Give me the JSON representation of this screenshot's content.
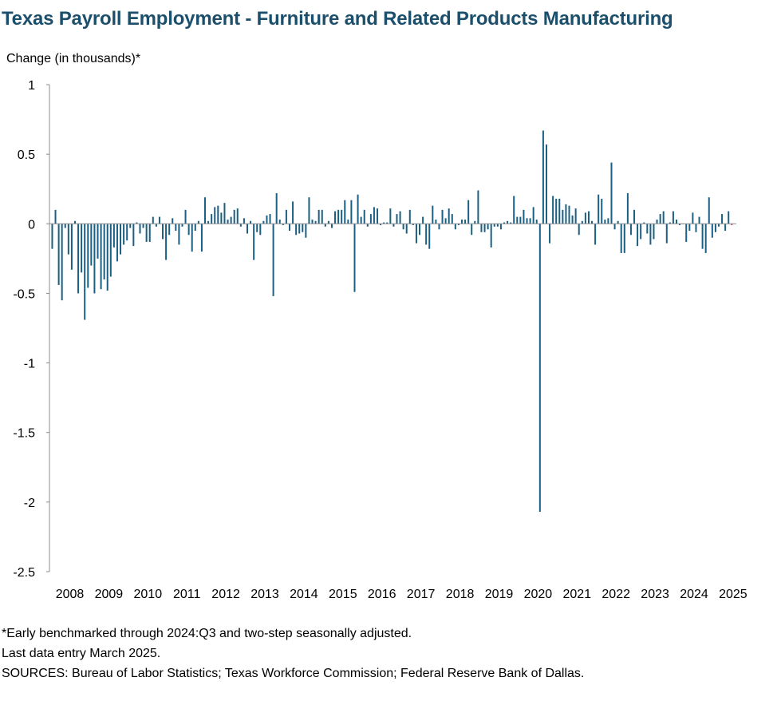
{
  "chart_data": {
    "type": "bar",
    "title": "Texas Payroll Employment - Furniture and Related Products Manufacturing",
    "ylabel": "Change (in thousands)*",
    "xlabel": "",
    "ylim": [
      -2.5,
      1
    ],
    "yticks": [
      "1",
      "0.5",
      "0",
      "-0.5",
      "-1",
      "-1.5",
      "-2",
      "-2.5"
    ],
    "ytick_values": [
      1,
      0.5,
      0,
      -0.5,
      -1,
      -1.5,
      -2,
      -2.5
    ],
    "xticks": [
      "2008",
      "2009",
      "2010",
      "2011",
      "2012",
      "2013",
      "2014",
      "2015",
      "2016",
      "2017",
      "2018",
      "2019",
      "2020",
      "2021",
      "2022",
      "2023",
      "2024",
      "2025"
    ],
    "start": "2008-01",
    "end": "2025-03",
    "grid": false,
    "bar_color": "#1b5f82",
    "negative_last_color": "#c0504d",
    "values": [
      -0.18,
      0.1,
      -0.44,
      -0.55,
      -0.03,
      -0.22,
      -0.33,
      0.02,
      -0.5,
      -0.35,
      -0.69,
      -0.46,
      -0.3,
      -0.5,
      -0.25,
      -0.47,
      -0.4,
      -0.48,
      -0.38,
      -0.17,
      -0.27,
      -0.22,
      -0.15,
      -0.12,
      -0.03,
      -0.16,
      0.01,
      -0.07,
      -0.03,
      -0.13,
      -0.13,
      0.05,
      -0.02,
      0.05,
      -0.11,
      -0.26,
      -0.08,
      0.04,
      -0.05,
      -0.15,
      -0.02,
      0.1,
      -0.08,
      -0.2,
      -0.05,
      0.02,
      -0.2,
      0.19,
      0.02,
      0.07,
      0.12,
      0.13,
      0.08,
      0.15,
      0.03,
      0.05,
      0.1,
      0.11,
      -0.02,
      0.04,
      -0.07,
      0.02,
      -0.26,
      -0.06,
      -0.08,
      0.02,
      0.06,
      0.07,
      -0.52,
      0.22,
      0.03,
      -0.01,
      0.1,
      -0.05,
      0.16,
      -0.08,
      -0.07,
      -0.06,
      -0.1,
      0.19,
      0.03,
      0.02,
      0.1,
      0.1,
      -0.02,
      0.02,
      -0.03,
      0.09,
      0.1,
      0.1,
      0.17,
      0.03,
      0.17,
      -0.49,
      0.21,
      0.05,
      0.1,
      -0.02,
      0.07,
      0.12,
      0.11,
      -0.01,
      0.01,
      0.01,
      0.11,
      -0.02,
      0.07,
      0.09,
      -0.04,
      -0.07,
      0.1,
      -0.01,
      -0.14,
      -0.08,
      0.05,
      -0.15,
      -0.18,
      0.13,
      0.03,
      -0.04,
      0.1,
      0.04,
      0.11,
      0.07,
      -0.04,
      -0.01,
      0.03,
      0.03,
      0.17,
      -0.08,
      0.02,
      0.24,
      -0.06,
      -0.06,
      -0.04,
      -0.17,
      -0.02,
      -0.02,
      -0.04,
      0.01,
      0.02,
      0.01,
      0.2,
      0.05,
      0.05,
      0.1,
      0.04,
      0.04,
      0.12,
      0.03,
      -2.07,
      0.67,
      0.57,
      -0.14,
      0.2,
      0.18,
      0.18,
      0.1,
      0.14,
      0.13,
      0.06,
      0.11,
      -0.08,
      0.02,
      0.08,
      0.09,
      0.02,
      -0.15,
      0.21,
      0.18,
      0.03,
      0.04,
      0.44,
      -0.04,
      0.02,
      -0.21,
      -0.21,
      0.22,
      -0.08,
      0.1,
      -0.16,
      -0.11,
      0.01,
      -0.07,
      -0.15,
      -0.11,
      0.03,
      0.07,
      0.09,
      -0.14,
      0.01,
      0.09,
      0.03,
      -0.01,
      0.0,
      -0.13,
      -0.05,
      0.08,
      -0.06,
      0.05,
      -0.18,
      -0.21,
      0.19,
      -0.1,
      -0.06,
      -0.02,
      0.07,
      -0.05,
      0.09,
      -0.01
    ]
  },
  "notes": [
    "*Early benchmarked through 2024:Q3 and two-step seasonally adjusted.",
    "Last data entry March 2025.",
    "SOURCES: Bureau of Labor Statistics; Texas Workforce Commission; Federal Reserve Bank of Dallas."
  ]
}
